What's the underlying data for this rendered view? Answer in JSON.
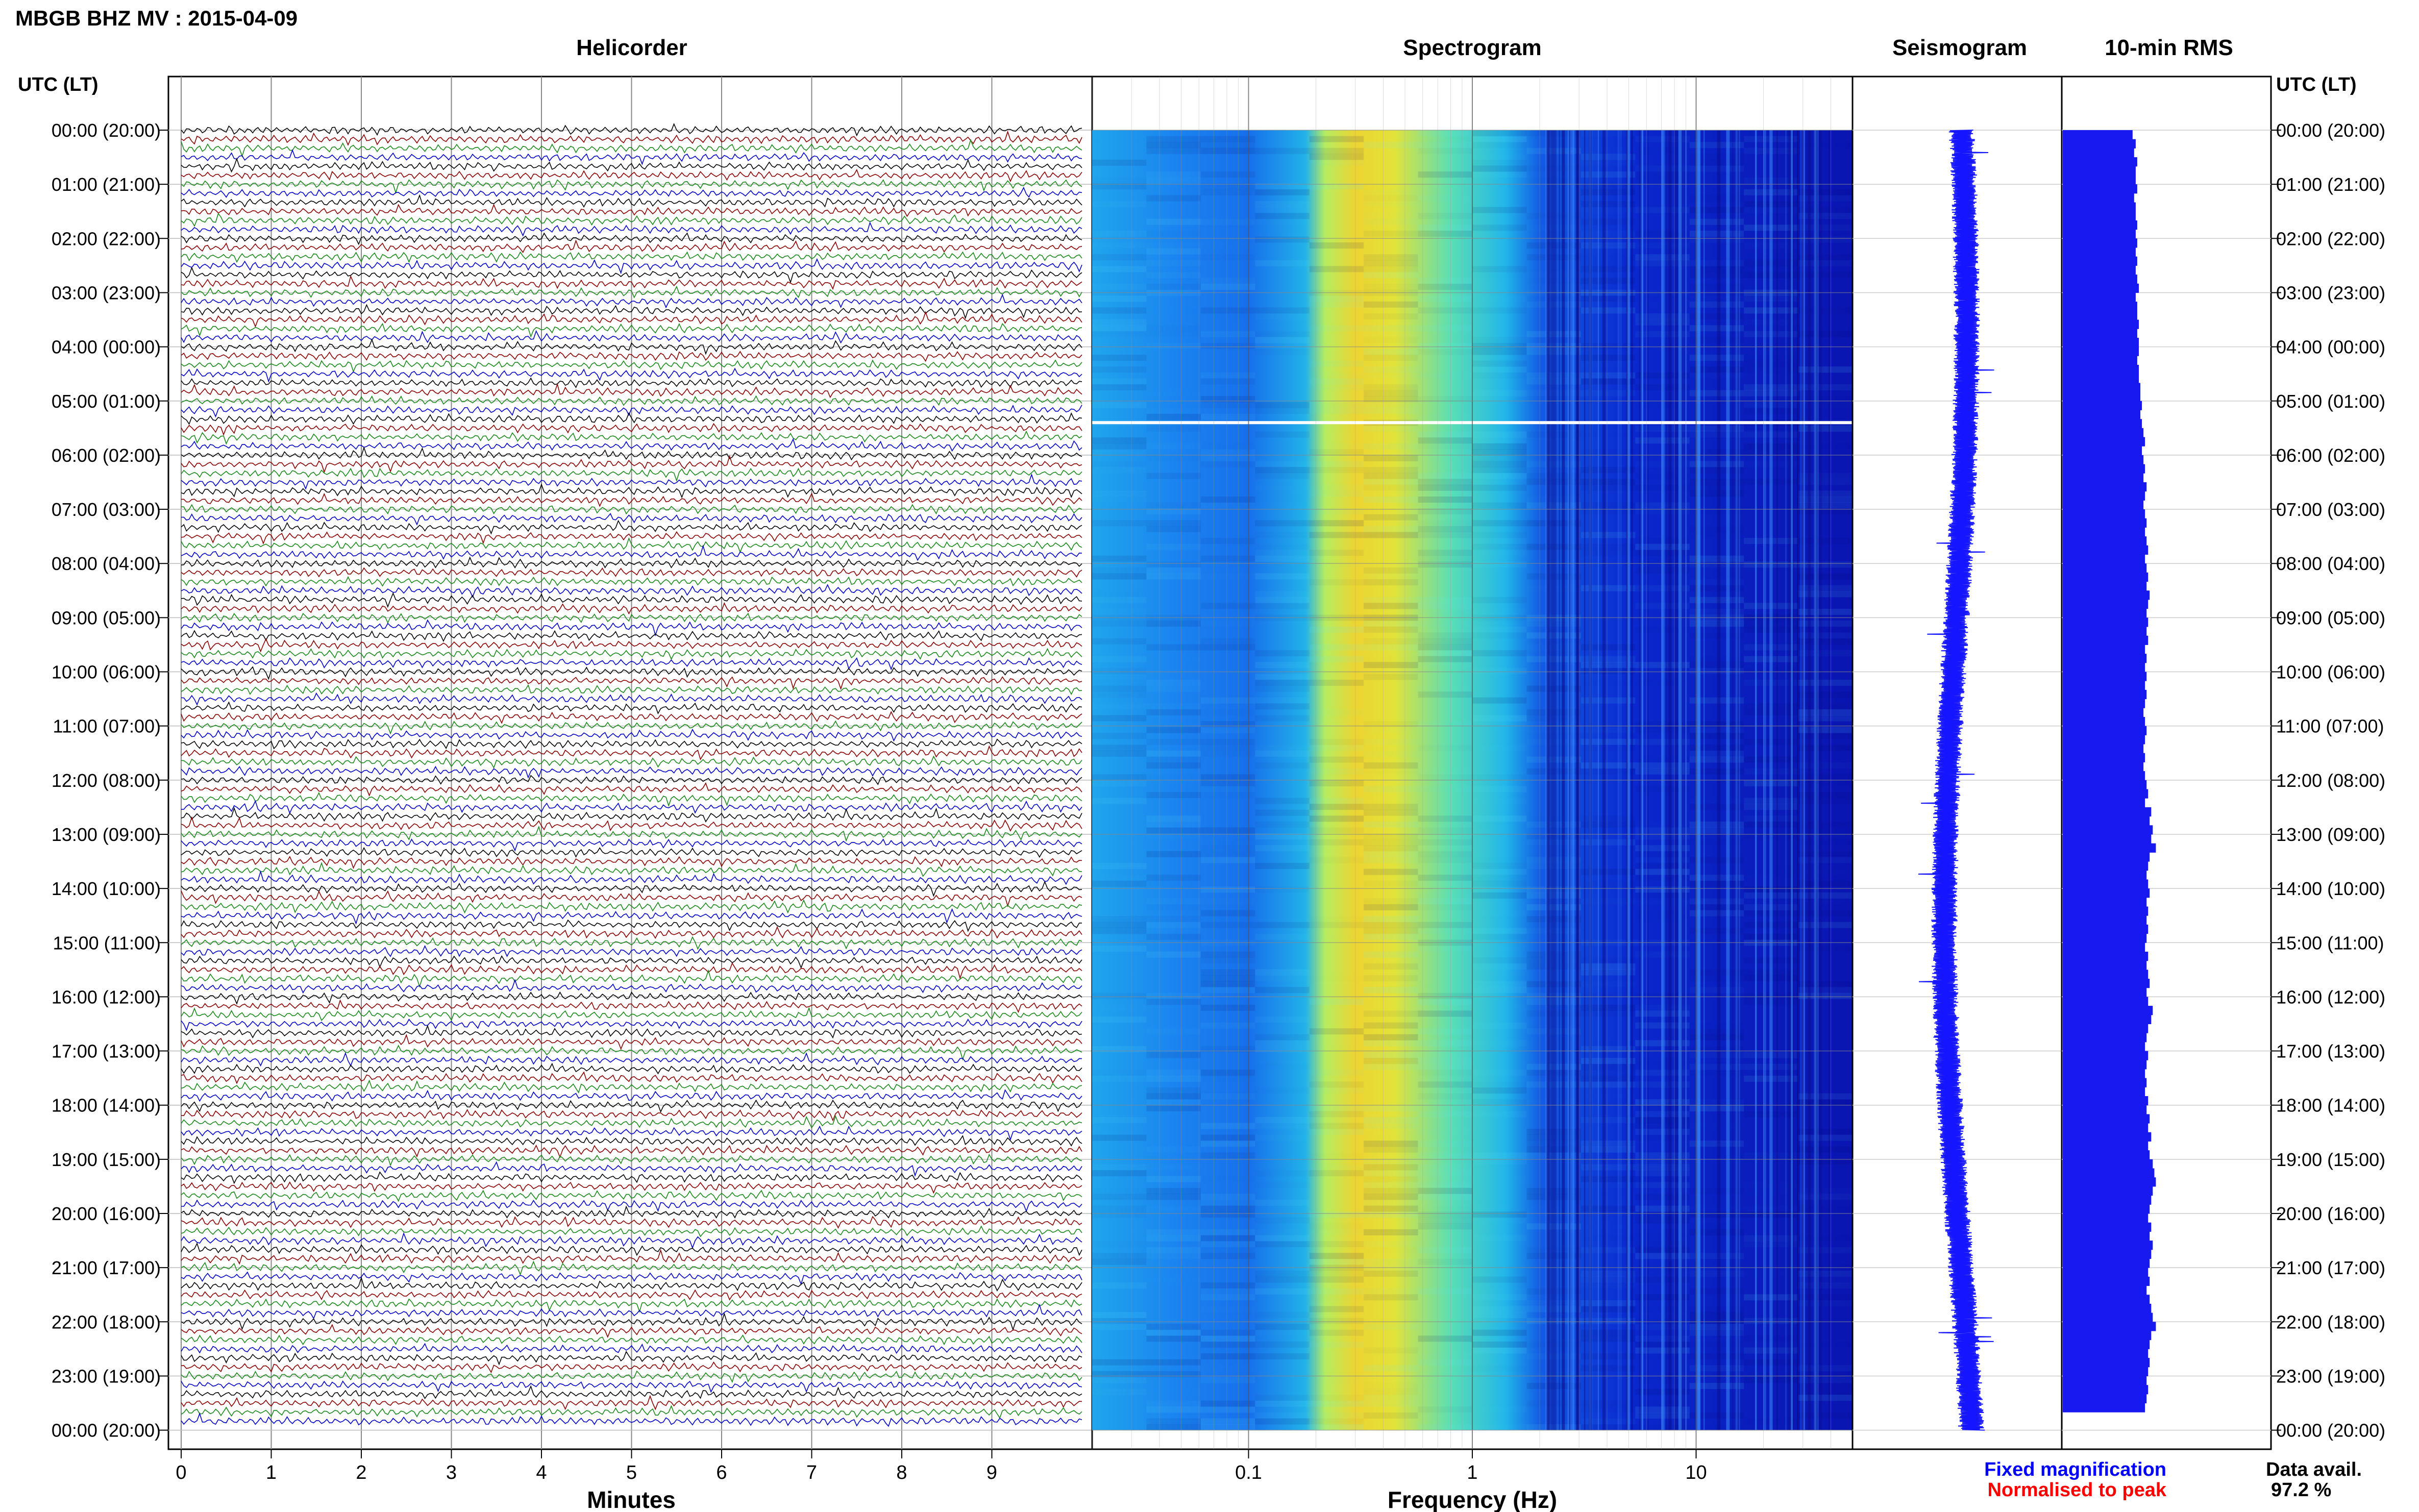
{
  "header": {
    "station_title": "MBGB BHZ MV : 2015-04-09"
  },
  "panels": {
    "helicorder": "Helicorder",
    "spectrogram": "Spectrogram",
    "seismogram": "Seismogram",
    "rms": "10-min RMS"
  },
  "axes": {
    "time_axis_label": "UTC (LT)",
    "minutes_label": "Minutes",
    "frequency_label": "Frequency (Hz)"
  },
  "legend": {
    "fixed": "Fixed magnification",
    "normalised": "Normalised to peak",
    "fixed_color": "#0000ff",
    "normalised_color": "#ff0000"
  },
  "data_availability": {
    "label": "Data avail.",
    "value": "97.2 %"
  },
  "colors": {
    "trace_cycle": [
      "#000000",
      "#8b0000",
      "#1a8a1a",
      "#0000c8"
    ],
    "seismogram": "#1515ff",
    "rms_bars": "#1818f0",
    "spectrogram_stops": [
      "#0a0aa0",
      "#0a2fd8",
      "#1a7ff0",
      "#25c8e8",
      "#6fe8a0",
      "#d8f040",
      "#f0d030"
    ]
  },
  "chart_data": [
    {
      "type": "line",
      "panel": "helicorder",
      "x_ticks": [
        0,
        1,
        2,
        3,
        4,
        5,
        6,
        7,
        8,
        9
      ],
      "xlim": [
        0,
        10
      ],
      "lines_per_hour": 6,
      "hours": 24,
      "y_tick_labels": [
        "00:00 (20:00)",
        "01:00 (21:00)",
        "02:00 (22:00)",
        "03:00 (23:00)",
        "04:00 (00:00)",
        "05:00 (01:00)",
        "06:00 (02:00)",
        "07:00 (03:00)",
        "08:00 (04:00)",
        "09:00 (05:00)",
        "10:00 (06:00)",
        "11:00 (07:00)",
        "12:00 (08:00)",
        "13:00 (09:00)",
        "14:00 (10:00)",
        "15:00 (11:00)",
        "16:00 (12:00)",
        "17:00 (13:00)",
        "18:00 (14:00)",
        "19:00 (15:00)",
        "20:00 (16:00)",
        "21:00 (17:00)",
        "22:00 (18:00)",
        "23:00 (19:00)",
        "00:00 (20:00)"
      ]
    },
    {
      "type": "heatmap",
      "panel": "spectrogram",
      "x_scale": "log",
      "xlim": [
        0.02,
        50
      ],
      "x_tick_labels": [
        "0.1",
        "1",
        "10"
      ],
      "x_tick_values": [
        0.1,
        1,
        10
      ],
      "data_gap_hour": 5.4
    },
    {
      "type": "line",
      "panel": "seismogram",
      "hours": 24
    },
    {
      "type": "bar",
      "panel": "rms",
      "orientation": "horizontal",
      "interval_minutes": 10,
      "values": [
        0.45,
        0.47,
        0.46,
        0.48,
        0.47,
        0.47,
        0.48,
        0.46,
        0.47,
        0.47,
        0.48,
        0.47,
        0.48,
        0.47,
        0.48,
        0.47,
        0.48,
        0.49,
        0.47,
        0.48,
        0.48,
        0.49,
        0.48,
        0.49,
        0.49,
        0.48,
        0.49,
        0.49,
        0.5,
        0.5,
        0.51,
        0.5,
        0.51,
        0.52,
        0.53,
        0.51,
        0.52,
        0.53,
        0.52,
        0.54,
        0.53,
        0.52,
        0.53,
        0.54,
        0.53,
        0.54,
        0.55,
        0.53,
        0.54,
        0.55,
        0.54,
        0.56,
        0.55,
        0.54,
        0.55,
        0.54,
        0.55,
        0.53,
        0.54,
        0.53,
        0.54,
        0.53,
        0.54,
        0.53,
        0.52,
        0.53,
        0.54,
        0.53,
        0.52,
        0.53,
        0.52,
        0.53,
        0.54,
        0.55,
        0.53,
        0.57,
        0.56,
        0.58,
        0.57,
        0.6,
        0.56,
        0.55,
        0.54,
        0.55,
        0.56,
        0.54,
        0.55,
        0.54,
        0.55,
        0.54,
        0.53,
        0.55,
        0.54,
        0.55,
        0.56,
        0.54,
        0.55,
        0.58,
        0.57,
        0.55,
        0.54,
        0.53,
        0.55,
        0.54,
        0.53,
        0.54,
        0.53,
        0.55,
        0.54,
        0.56,
        0.55,
        0.57,
        0.55,
        0.56,
        0.58,
        0.59,
        0.6,
        0.58,
        0.57,
        0.56,
        0.55,
        0.57,
        0.56,
        0.58,
        0.57,
        0.56,
        0.55,
        0.56,
        0.54,
        0.56,
        0.57,
        0.58,
        0.6,
        0.57,
        0.56,
        0.55,
        0.56,
        0.55,
        0.54,
        0.55,
        0.54,
        0.53
      ]
    }
  ]
}
